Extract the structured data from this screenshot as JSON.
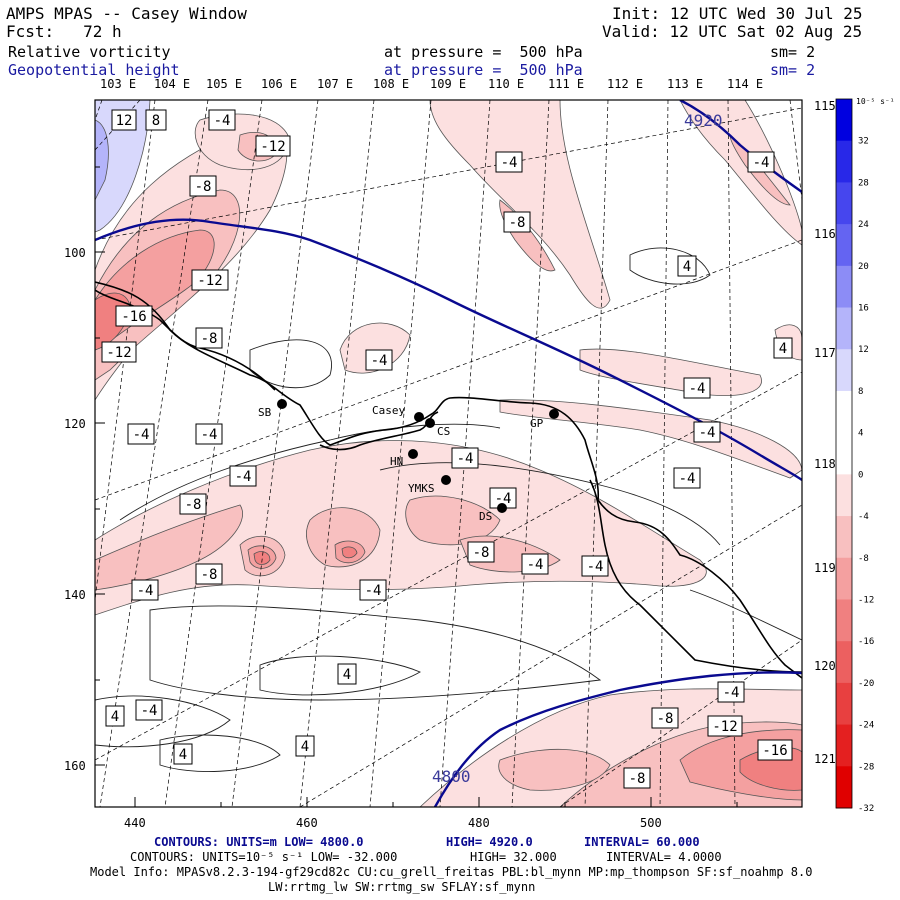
{
  "header": {
    "title": "AMPS MPAS -- Casey Window",
    "fcst_label": "Fcst:",
    "fcst_value": "72 h",
    "init_label": "Init:",
    "init_value": "12 UTC Wed 30 Jul 25",
    "valid_label": "Valid:",
    "valid_value": "12 UTC Sat 02 Aug 25",
    "field1": "Relative vorticity",
    "field2": "Geopotential height",
    "level1": "at pressure =  500 hPa",
    "level2": "at pressure =  500 hPa",
    "sm1": "sm= 2",
    "sm2": "sm= 2"
  },
  "lon_labels_top": [
    "103 E",
    "104 E",
    "105 E",
    "106 E",
    "107 E",
    "108 E",
    "109 E",
    "110 E",
    "111 E",
    "112 E",
    "113 E",
    "114 E"
  ],
  "lon_labels_right": [
    "115 E",
    "116 E",
    "117 E",
    "118 E",
    "119 E",
    "120 E",
    "121 E"
  ],
  "axis_y_ticks": [
    "100",
    "120",
    "140",
    "160"
  ],
  "axis_x_ticks": [
    "440",
    "460",
    "480",
    "500"
  ],
  "stations": [
    {
      "name": "SB"
    },
    {
      "name": "Casey"
    },
    {
      "name": "CS"
    },
    {
      "name": "HN"
    },
    {
      "name": "YMKS"
    },
    {
      "name": "DS"
    },
    {
      "name": "GP"
    }
  ],
  "height_labels": [
    "4920",
    "4800"
  ],
  "vort_labels": [
    "12",
    "8",
    "-4",
    "-12",
    "-8",
    "-4",
    "-8",
    "-4",
    "-12",
    "-16",
    "-8",
    "-12",
    "-4",
    "-4",
    "-4",
    "-4",
    "-4",
    "-4",
    "-8",
    "-8",
    "-4",
    "-4",
    "-8",
    "-4",
    "-4",
    "-4",
    "-4",
    "-4",
    "-8",
    "-12",
    "-16",
    "-8",
    "4",
    "4",
    "4",
    "4",
    "4",
    "4",
    "-4",
    "-4"
  ],
  "colorbar": {
    "unit": "10⁻⁵ s⁻¹",
    "labels": [
      "32",
      "28",
      "24",
      "20",
      "16",
      "12",
      "8",
      "4",
      "0",
      "-4",
      "-8",
      "-12",
      "-16",
      "-20",
      "-24",
      "-28",
      "-32"
    ],
    "colors": [
      "#0000e0",
      "#2828e8",
      "#4646ee",
      "#6464f2",
      "#8c8cf6",
      "#b4b4fa",
      "#d8d8fc",
      "#ffffff",
      "#ffffff",
      "#fce0e0",
      "#f8c0c0",
      "#f4a0a0",
      "#f08080",
      "#ec6060",
      "#e84040",
      "#e42020",
      "#e00000"
    ]
  },
  "footer": {
    "line1_a": "CONTOURS:  UNITS=m  LOW=  4800.0",
    "line1_b": "HIGH=  4920.0",
    "line1_c": "INTERVAL=   60.000",
    "line2_a": "CONTOURS:  UNITS=10⁻⁵ s⁻¹  LOW=  -32.000",
    "line2_b": "HIGH=  32.000",
    "line2_c": "INTERVAL=   4.0000",
    "line3": "Model Info: MPASv8.2.3-194-gf29cd82c CU:cu_grell_freitas PBL:bl_mynn MP:mp_thompson SF:sf_noahmp 8.0",
    "line4": "LW:rrtmg_lw SW:rrtmg_sw SFLAY:sf_mynn"
  }
}
